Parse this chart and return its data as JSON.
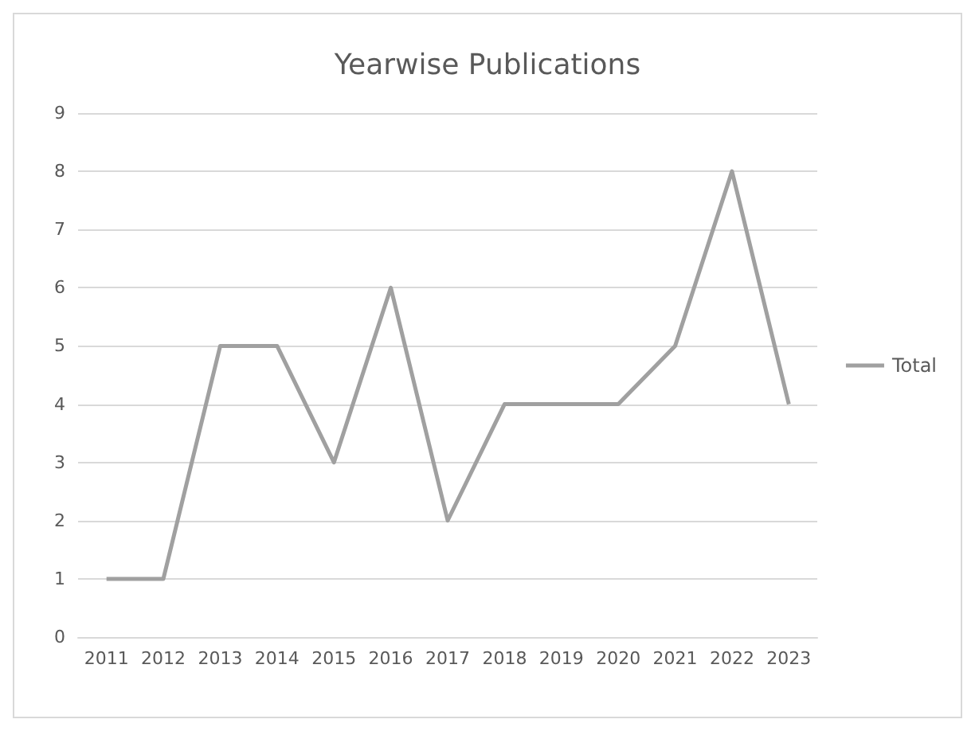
{
  "chart_data": {
    "type": "line",
    "title": "Yearwise Publications",
    "categories": [
      "2011",
      "2012",
      "2013",
      "2014",
      "2015",
      "2016",
      "2017",
      "2018",
      "2019",
      "2020",
      "2021",
      "2022",
      "2023"
    ],
    "series": [
      {
        "name": "Total",
        "color": "#a0a0a0",
        "values": [
          1,
          1,
          5,
          5,
          3,
          6,
          2,
          4,
          4,
          4,
          5,
          8,
          4
        ]
      }
    ],
    "ylim": [
      0,
      9
    ],
    "yticks": [
      0,
      1,
      2,
      3,
      4,
      5,
      6,
      7,
      8,
      9
    ],
    "grid": "y",
    "legend": "right",
    "marker": "none",
    "line_style": "solid"
  }
}
